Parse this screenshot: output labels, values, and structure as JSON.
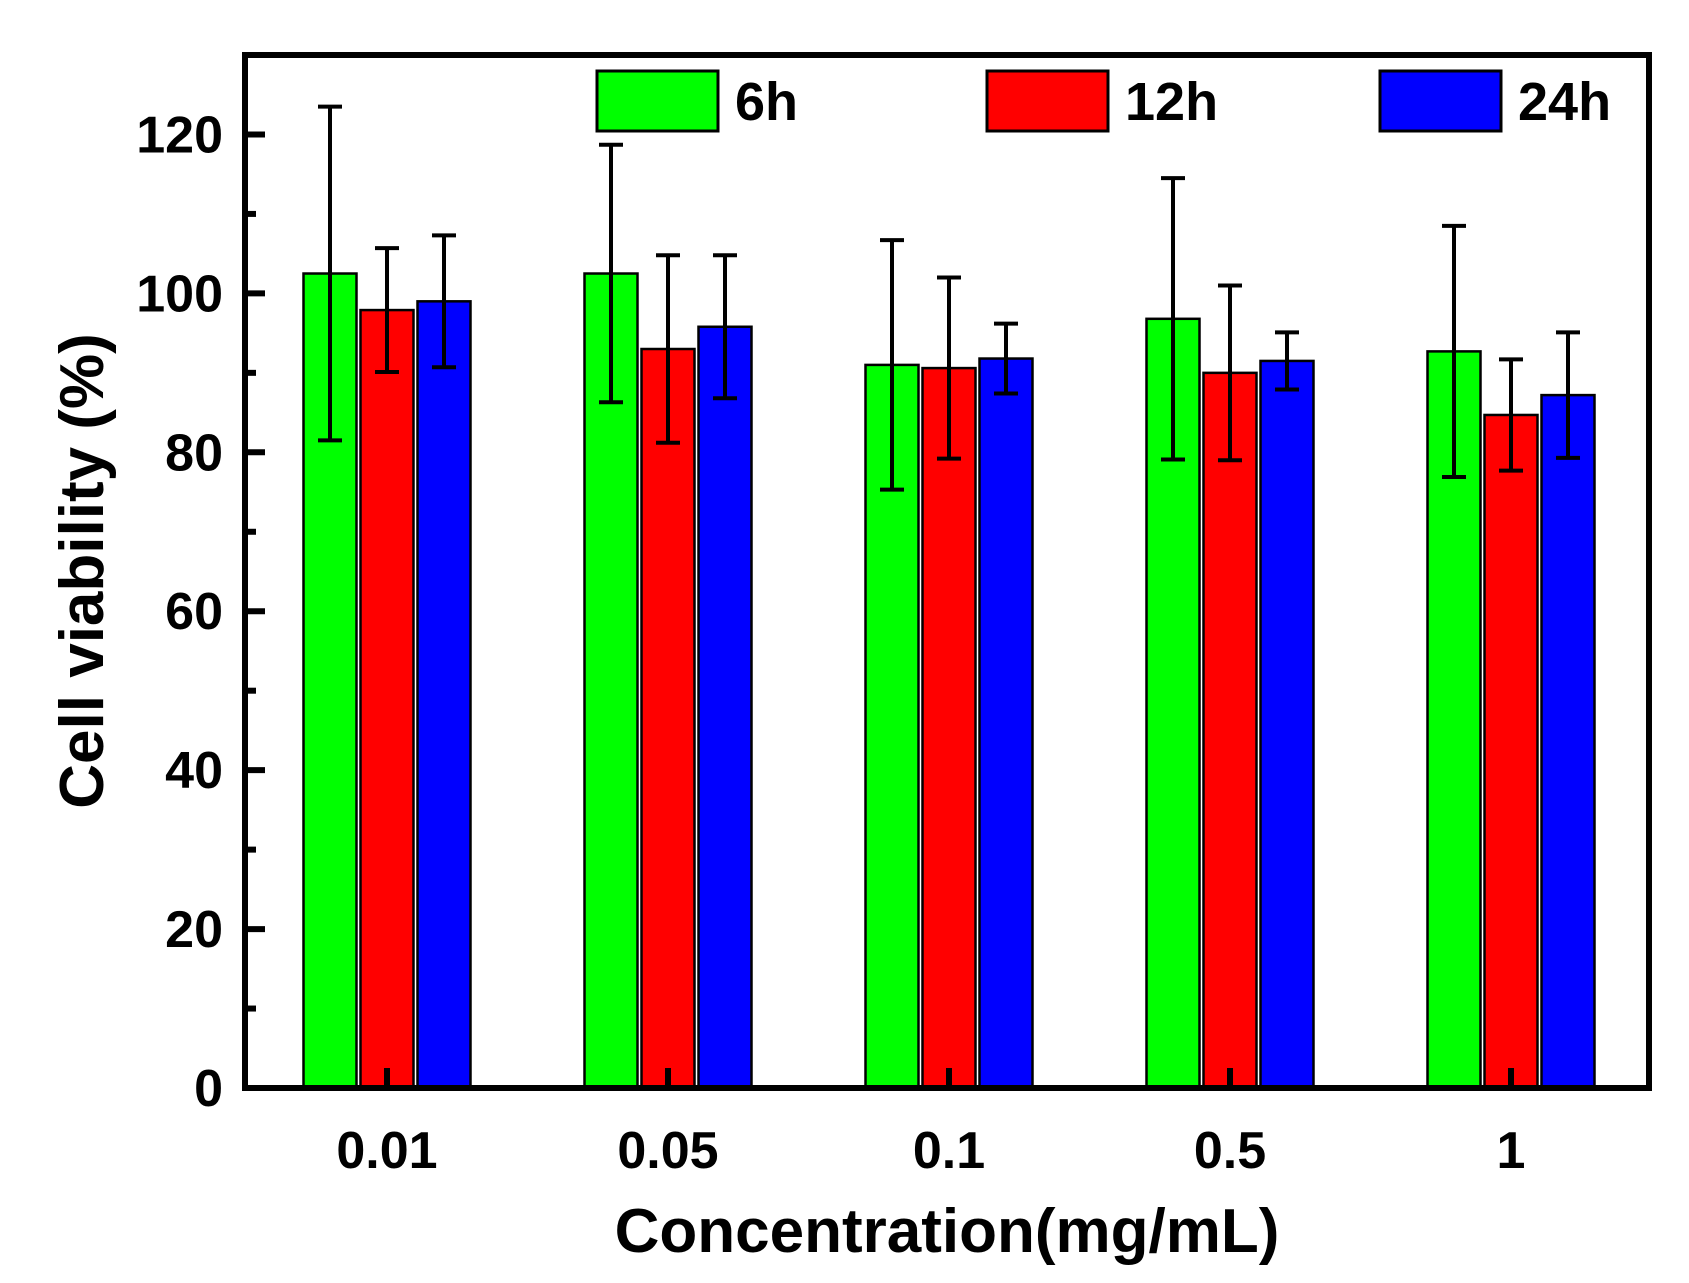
{
  "chart_data": {
    "type": "bar",
    "title": "",
    "xlabel": "Concentration(mg/mL)",
    "ylabel": "Cell viability (%)",
    "ylim": [
      0,
      130
    ],
    "yticks": [
      0,
      20,
      40,
      60,
      80,
      100,
      120
    ],
    "ytick_labels": [
      "0",
      "20",
      "40",
      "60",
      "80",
      "100",
      "120"
    ],
    "minor_ytick_step": 10,
    "grid": false,
    "legend_position": "top",
    "categories": [
      "0.01",
      "0.05",
      "0.1",
      "0.5",
      "1"
    ],
    "series": [
      {
        "name": "6h",
        "color": "#00ff00",
        "values": [
          102.5,
          102.5,
          91.0,
          96.8,
          92.7
        ],
        "errors": [
          21.0,
          16.2,
          15.7,
          17.7,
          15.8
        ]
      },
      {
        "name": "12h",
        "color": "#ff0000",
        "values": [
          97.9,
          93.0,
          90.6,
          90.0,
          84.7
        ],
        "errors": [
          7.8,
          11.8,
          11.4,
          11.0,
          7.0
        ]
      },
      {
        "name": "24h",
        "color": "#0000ff",
        "values": [
          99.0,
          95.8,
          91.8,
          91.5,
          87.2
        ],
        "errors": [
          8.3,
          9.0,
          4.4,
          3.6,
          7.9
        ]
      }
    ]
  }
}
